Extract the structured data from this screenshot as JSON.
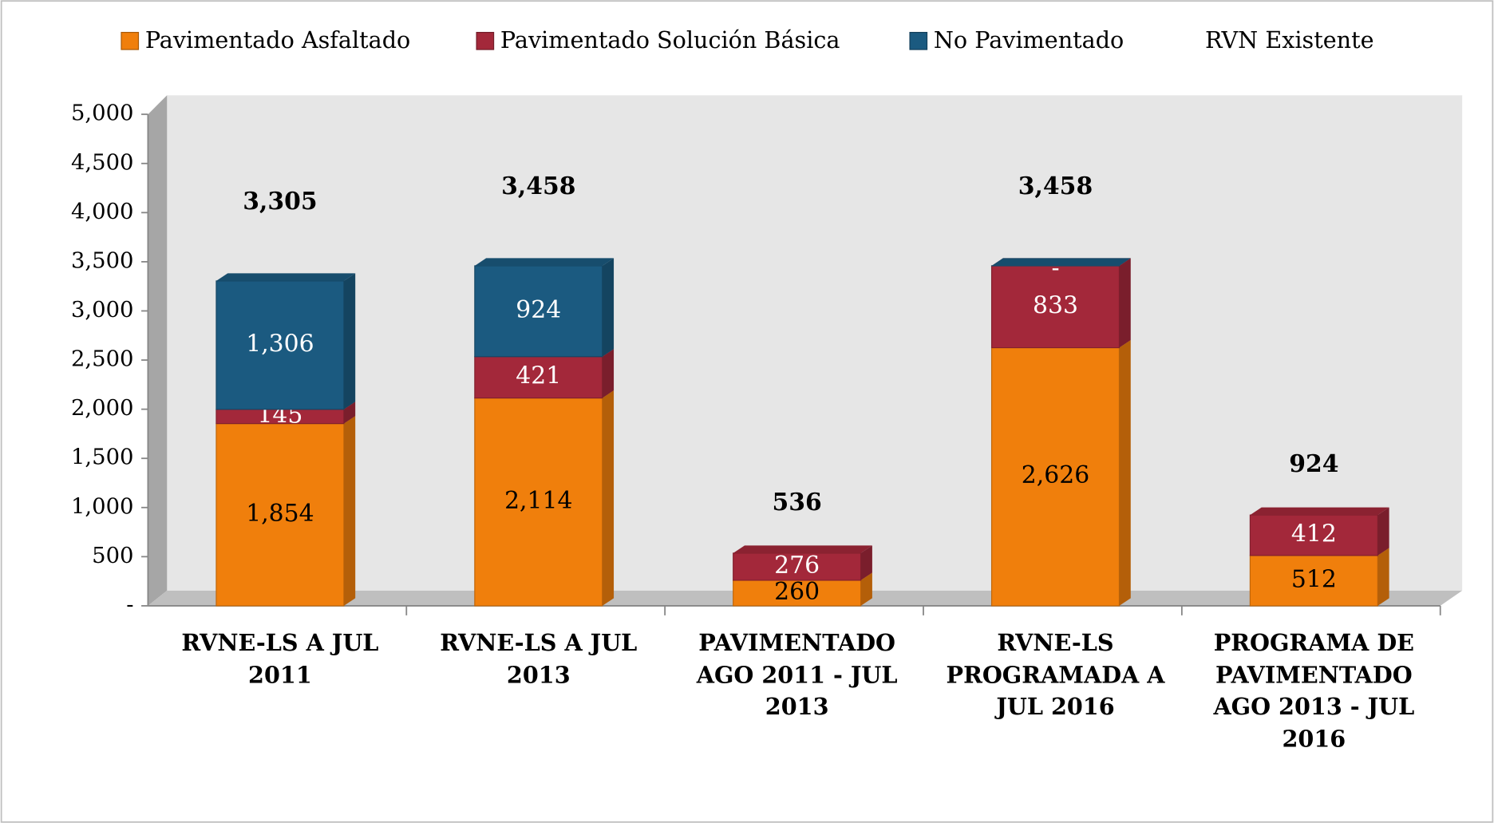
{
  "chart_data": {
    "type": "stacked_bar_3d",
    "categories": [
      "RVNE-LS A JUL 2011",
      "RVNE-LS A JUL 2013",
      "PAVIMENTADO AGO 2011 - JUL 2013",
      "RVNE-LS PROGRAMADA A JUL 2016",
      "PROGRAMA DE PAVIMENTADO AGO 2013 - JUL 2016"
    ],
    "series": [
      {
        "name": "Pavimentado Asfaltado",
        "color": "#f07f0c",
        "values": [
          1854,
          2114,
          260,
          2626,
          512
        ],
        "value_labels": [
          "1,854",
          "2,114",
          "260",
          "2,626",
          "512"
        ]
      },
      {
        "name": "Pavimentado Solución Básica",
        "color": "#a3283a",
        "values": [
          145,
          421,
          276,
          833,
          412
        ],
        "value_labels": [
          "145",
          "421",
          "276",
          "833",
          "412"
        ]
      },
      {
        "name": "No Pavimentado",
        "color": "#1b5a80",
        "values": [
          1306,
          924,
          null,
          0,
          null
        ],
        "value_labels": [
          "1,306",
          "924",
          null,
          "-",
          null
        ]
      },
      {
        "name": "RVN Existente",
        "values": [
          3305,
          3458,
          536,
          3458,
          924
        ],
        "value_labels": [
          "3,305",
          "3,458",
          "536",
          "3,458",
          "924"
        ]
      }
    ],
    "ylim": [
      0,
      5000
    ],
    "yticks": [
      {
        "value": 0,
        "label": "-"
      },
      500,
      {
        "value": 1000,
        "label": "1,000"
      },
      {
        "value": 1500,
        "label": "1,500"
      },
      {
        "value": 2000,
        "label": "2,000"
      },
      {
        "value": 2500,
        "label": "2,500"
      },
      {
        "value": 3000,
        "label": "3,000"
      },
      {
        "value": 3500,
        "label": "3,500"
      },
      {
        "value": 4000,
        "label": "4,000"
      },
      {
        "value": 4500,
        "label": "4,500"
      },
      {
        "value": 5000,
        "label": "5,000"
      }
    ],
    "legend": "top"
  }
}
